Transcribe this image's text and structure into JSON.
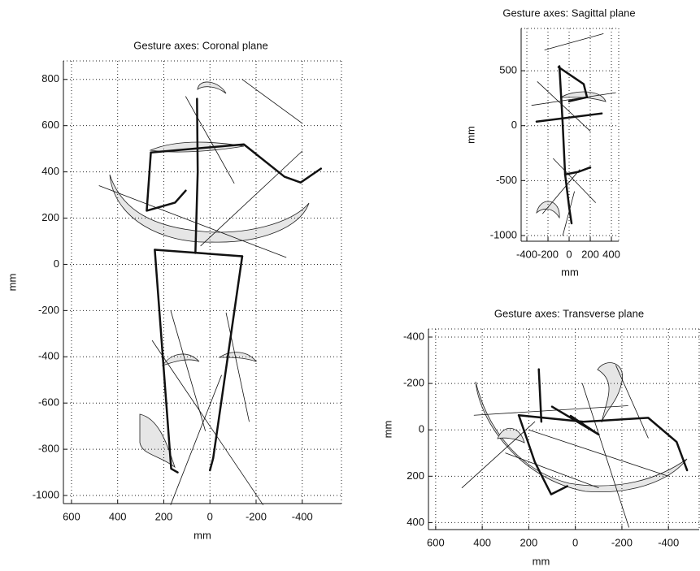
{
  "chart_data": [
    {
      "type": "line",
      "title": "Gesture axes: Coronal plane",
      "xlabel": "mm",
      "ylabel": "mm",
      "xlim": [
        635,
        -570
      ],
      "ylim": [
        -1035,
        880
      ],
      "xticks": [
        600,
        400,
        200,
        0,
        -200,
        -400
      ],
      "yticks": [
        800,
        600,
        400,
        200,
        0,
        -200,
        -400,
        -600,
        -800,
        -1000
      ],
      "grid": true,
      "color": "#111111",
      "lines": [
        {
          "width": 2.5,
          "x": [
            56,
            53,
            63
          ],
          "y": [
            716,
            400,
            49
          ]
        },
        {
          "width": 2.5,
          "x": [
            256,
            -147,
            -323,
            -393,
            -481
          ],
          "y": [
            484,
            519,
            379,
            354,
            414
          ]
        },
        {
          "width": 2.5,
          "x": [
            256,
            274,
            151,
            105
          ],
          "y": [
            484,
            232,
            267,
            319
          ]
        },
        {
          "width": 2.5,
          "x": [
            239,
            -140
          ],
          "y": [
            63,
            35
          ]
        },
        {
          "width": 2.5,
          "x": [
            239,
            168,
            140
          ],
          "y": [
            63,
            -884,
            -900
          ]
        },
        {
          "width": 2.5,
          "x": [
            -140,
            -14,
            0
          ],
          "y": [
            35,
            -839,
            -891
          ]
        },
        {
          "width": 0.8,
          "x": [
            105,
            -105
          ],
          "y": [
            726,
            351
          ]
        },
        {
          "width": 0.8,
          "x": [
            -140,
            -400
          ],
          "y": [
            800,
            610
          ]
        },
        {
          "width": 0.8,
          "x": [
            480,
            -330
          ],
          "y": [
            340,
            30
          ]
        },
        {
          "width": 0.8,
          "x": [
            -400,
            40
          ],
          "y": [
            490,
            80
          ]
        },
        {
          "width": 0.8,
          "x": [
            170,
            20
          ],
          "y": [
            -200,
            -720
          ]
        },
        {
          "width": 0.8,
          "x": [
            -70,
            -170
          ],
          "y": [
            -210,
            -680
          ]
        },
        {
          "width": 0.8,
          "x": [
            250,
            -230
          ],
          "y": [
            -330,
            -1040
          ]
        },
        {
          "width": 0.8,
          "x": [
            170,
            -50
          ],
          "y": [
            -1040,
            -480
          ]
        }
      ]
    },
    {
      "type": "line",
      "title": "Gesture axes: Sagittal plane",
      "xlabel": "mm",
      "ylabel": "mm",
      "xlim": [
        -454,
        469
      ],
      "ylim": [
        -1052,
        885
      ],
      "xticks": [
        -400,
        -200,
        0,
        200,
        400
      ],
      "yticks": [
        500,
        0,
        -500,
        -1000
      ],
      "grid": true,
      "color": "#111111",
      "lines": [
        {
          "width": 2.5,
          "x": [
            -92,
            -62,
            -38,
            0,
            23
          ],
          "y": [
            541,
            37,
            -444,
            -741,
            -889
          ]
        },
        {
          "width": 2.5,
          "x": [
            -100,
            138,
            169,
            0
          ],
          "y": [
            533,
            378,
            259,
            222
          ]
        },
        {
          "width": 2.5,
          "x": [
            -308,
            308
          ],
          "y": [
            37,
            111
          ]
        },
        {
          "width": 2.5,
          "x": [
            -38,
            90,
            200
          ],
          "y": [
            -444,
            -420,
            -380
          ]
        },
        {
          "width": 0.8,
          "x": [
            -231,
            323
          ],
          "y": [
            689,
            837
          ]
        },
        {
          "width": 0.8,
          "x": [
            -354,
            440
          ],
          "y": [
            185,
            300
          ]
        },
        {
          "width": 0.8,
          "x": [
            -300,
            200
          ],
          "y": [
            400,
            -50
          ]
        },
        {
          "width": 0.8,
          "x": [
            -150,
            250
          ],
          "y": [
            -300,
            -700
          ]
        },
        {
          "width": 0.8,
          "x": [
            -250,
            100
          ],
          "y": [
            -800,
            -400
          ]
        },
        {
          "width": 0.8,
          "x": [
            -60,
            50
          ],
          "y": [
            -1000,
            -600
          ]
        }
      ]
    },
    {
      "type": "line",
      "title": "Gesture axes: Transverse plane",
      "xlabel": "mm",
      "ylabel": "mm",
      "xlim": [
        631,
        -532
      ],
      "ylim": [
        430,
        -435
      ],
      "xticks": [
        600,
        400,
        200,
        0,
        -200,
        -400
      ],
      "yticks": [
        -400,
        -200,
        0,
        200,
        400
      ],
      "grid": true,
      "color": "#111111",
      "lines": [
        {
          "width": 2.5,
          "x": [
            243,
            174,
            104,
            35
          ],
          "y": [
            -63,
            139,
            278,
            243
          ]
        },
        {
          "width": 2.5,
          "x": [
            243,
            -35,
            -313,
            -435,
            -480
          ],
          "y": [
            -63,
            -35,
            -52,
            52,
            174
          ]
        },
        {
          "width": 2.5,
          "x": [
            157,
            146
          ],
          "y": [
            -261,
            -35
          ]
        },
        {
          "width": 2.5,
          "x": [
            100,
            -100,
            20
          ],
          "y": [
            -100,
            20,
            -60
          ]
        },
        {
          "width": 0.8,
          "x": [
            435,
            -226
          ],
          "y": [
            -63,
            -104
          ]
        },
        {
          "width": 0.8,
          "x": [
            487,
            174
          ],
          "y": [
            250,
            -35
          ]
        },
        {
          "width": 0.8,
          "x": [
            -174,
            -313
          ],
          "y": [
            -278,
            35
          ]
        },
        {
          "width": 0.8,
          "x": [
            -30,
            -230
          ],
          "y": [
            -200,
            420
          ]
        },
        {
          "width": 0.8,
          "x": [
            300,
            -100
          ],
          "y": [
            100,
            250
          ]
        },
        {
          "width": 0.8,
          "x": [
            200,
            -400
          ],
          "y": [
            0,
            200
          ]
        }
      ]
    }
  ]
}
